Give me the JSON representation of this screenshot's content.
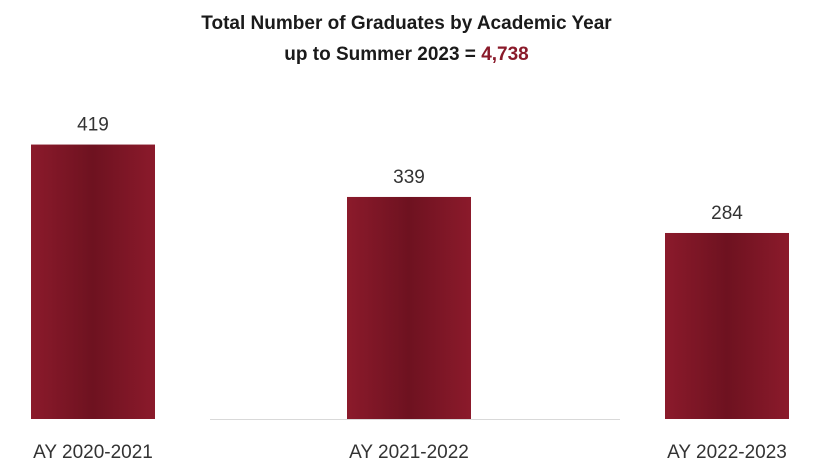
{
  "chart_data": {
    "type": "bar",
    "title_line1": "Total Number of Graduates by Academic Year",
    "title_line2_prefix": "up to Summer 2023 = ",
    "title_total": "4,738",
    "categories": [
      "AY 2020-2021",
      "AY 2021-2022",
      "AY 2022-2023"
    ],
    "values": [
      419,
      339,
      284
    ],
    "data_labels": [
      "419",
      "339",
      "284"
    ],
    "ylim": [
      0,
      480
    ],
    "grid": false,
    "legend": "none",
    "xlabel": "",
    "ylabel": "",
    "colors": {
      "bar": "#8b1a2b",
      "bar_dark": "#6e1220",
      "title_total": "#8a1a2a",
      "text": "#333333",
      "axis": "#d9d9d9"
    }
  }
}
